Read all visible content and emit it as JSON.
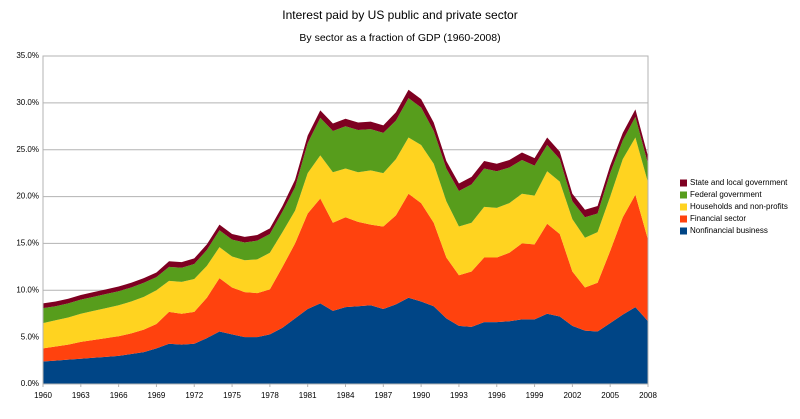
{
  "chart_data": {
    "type": "stacked_area",
    "title": "Interest paid by US public and private sector",
    "subtitle": "By sector as a fraction of GDP (1960-2008)",
    "x": [
      1960,
      1961,
      1962,
      1963,
      1964,
      1965,
      1966,
      1967,
      1968,
      1969,
      1970,
      1971,
      1972,
      1973,
      1974,
      1975,
      1976,
      1977,
      1978,
      1979,
      1980,
      1981,
      1982,
      1983,
      1984,
      1985,
      1986,
      1987,
      1988,
      1989,
      1990,
      1991,
      1992,
      1993,
      1994,
      1995,
      1996,
      1997,
      1998,
      1999,
      2000,
      2001,
      2002,
      2003,
      2004,
      2005,
      2006,
      2007,
      2008
    ],
    "xlim": [
      1960,
      2008
    ],
    "xticks": [
      1960,
      1963,
      1966,
      1969,
      1972,
      1975,
      1978,
      1981,
      1984,
      1987,
      1990,
      1993,
      1996,
      1999,
      2002,
      2005,
      2008
    ],
    "ylim": [
      0,
      35
    ],
    "yticks": [
      {
        "value": 0,
        "label": "0.0%"
      },
      {
        "value": 5,
        "label": "5.0%"
      },
      {
        "value": 10,
        "label": "10.0%"
      },
      {
        "value": 15,
        "label": "15.0%"
      },
      {
        "value": 20,
        "label": "20.0%"
      },
      {
        "value": 25,
        "label": "25.0%"
      },
      {
        "value": 30,
        "label": "30.0%"
      },
      {
        "value": 35,
        "label": "35.0%"
      }
    ],
    "grid": true,
    "legend": "right",
    "series": [
      {
        "name": "Nonfinancial business",
        "color": "#004586",
        "values": [
          2.4,
          2.5,
          2.6,
          2.7,
          2.8,
          2.9,
          3.0,
          3.2,
          3.4,
          3.8,
          4.3,
          4.2,
          4.3,
          4.9,
          5.6,
          5.3,
          5.0,
          5.0,
          5.3,
          6.0,
          7.0,
          8.0,
          8.6,
          7.8,
          8.2,
          8.3,
          8.4,
          8.0,
          8.5,
          9.2,
          8.8,
          8.3,
          7.0,
          6.2,
          6.1,
          6.6,
          6.6,
          6.7,
          6.9,
          6.9,
          7.5,
          7.2,
          6.2,
          5.7,
          5.6,
          6.5,
          7.4,
          8.2,
          6.7
        ]
      },
      {
        "name": "Financial sector",
        "color": "#ff420e",
        "values": [
          1.4,
          1.5,
          1.6,
          1.8,
          1.9,
          2.0,
          2.1,
          2.2,
          2.4,
          2.6,
          3.4,
          3.3,
          3.4,
          4.3,
          5.7,
          5.0,
          4.8,
          4.7,
          4.8,
          6.5,
          8.0,
          10.2,
          11.2,
          9.4,
          9.6,
          9.0,
          8.6,
          8.8,
          9.5,
          11.1,
          10.5,
          8.9,
          6.5,
          5.4,
          5.9,
          6.9,
          6.9,
          7.3,
          8.1,
          8.0,
          9.6,
          8.8,
          5.8,
          4.6,
          5.2,
          7.7,
          10.4,
          12.0,
          8.7
        ]
      },
      {
        "name": "Households and non-profits",
        "color": "#ffd320",
        "values": [
          2.7,
          2.8,
          2.9,
          3.0,
          3.1,
          3.2,
          3.3,
          3.4,
          3.5,
          3.6,
          3.3,
          3.4,
          3.5,
          3.4,
          3.3,
          3.3,
          3.4,
          3.6,
          3.9,
          3.7,
          3.5,
          4.3,
          4.6,
          5.4,
          5.2,
          5.3,
          5.8,
          5.7,
          6.0,
          6.0,
          6.2,
          6.3,
          6.0,
          5.2,
          5.2,
          5.4,
          5.3,
          5.3,
          5.3,
          5.2,
          5.6,
          5.6,
          5.6,
          5.3,
          5.4,
          5.8,
          6.2,
          6.1,
          6.1
        ]
      },
      {
        "name": "Federal government",
        "color": "#579d1c",
        "values": [
          1.6,
          1.5,
          1.5,
          1.5,
          1.5,
          1.5,
          1.5,
          1.5,
          1.5,
          1.4,
          1.5,
          1.5,
          1.6,
          1.7,
          1.8,
          1.8,
          1.9,
          2.0,
          2.0,
          2.2,
          2.5,
          3.2,
          4.0,
          4.4,
          4.5,
          4.5,
          4.4,
          4.3,
          4.1,
          4.2,
          4.0,
          3.5,
          3.5,
          3.8,
          4.1,
          4.1,
          3.9,
          3.8,
          3.6,
          3.2,
          2.8,
          2.4,
          1.9,
          2.2,
          2.0,
          2.5,
          2.0,
          2.2,
          2.0
        ]
      },
      {
        "name": "State and local government",
        "color": "#7e0021",
        "values": [
          0.5,
          0.5,
          0.5,
          0.5,
          0.5,
          0.5,
          0.5,
          0.5,
          0.5,
          0.5,
          0.6,
          0.6,
          0.6,
          0.6,
          0.6,
          0.6,
          0.6,
          0.6,
          0.6,
          0.6,
          0.8,
          0.8,
          0.8,
          0.8,
          0.8,
          0.8,
          0.8,
          0.8,
          0.9,
          0.9,
          0.9,
          0.9,
          0.8,
          0.8,
          0.8,
          0.8,
          0.8,
          0.8,
          0.8,
          0.8,
          0.8,
          0.8,
          0.8,
          0.8,
          0.8,
          0.8,
          0.8,
          0.8,
          0.8
        ]
      }
    ]
  }
}
